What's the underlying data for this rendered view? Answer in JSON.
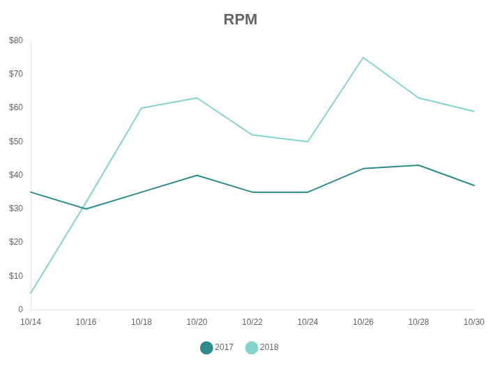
{
  "chart_data": {
    "type": "line",
    "title": "RPM",
    "categories": [
      "10/14",
      "10/16",
      "10/18",
      "10/20",
      "10/22",
      "10/24",
      "10/26",
      "10/28",
      "10/30"
    ],
    "series": [
      {
        "name": "2017",
        "color": "#2e8b8b",
        "values": [
          35,
          30,
          35,
          40,
          35,
          35,
          42,
          43,
          37
        ]
      },
      {
        "name": "2018",
        "color": "#82d5cd",
        "values": [
          5,
          32,
          60,
          63,
          52,
          50,
          75,
          63,
          59
        ]
      }
    ],
    "ylim": [
      0,
      80
    ],
    "yticks": [
      0,
      {
        "value": 10,
        "label": "$10"
      },
      {
        "value": 20,
        "label": "$20"
      },
      {
        "value": 30,
        "label": "$30"
      },
      {
        "value": 40,
        "label": "$40"
      },
      {
        "value": 50,
        "label": "$50"
      },
      {
        "value": 60,
        "label": "$60"
      },
      {
        "value": 70,
        "label": "$70"
      },
      {
        "value": 80,
        "label": "$80"
      }
    ],
    "grid": false,
    "legend": "bottom"
  }
}
